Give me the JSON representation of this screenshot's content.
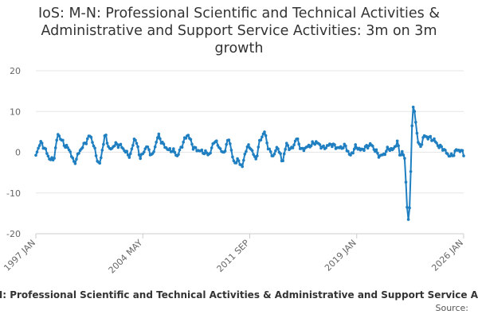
{
  "title_lines": [
    "IoS: M-N: Professional Scientific and Technical Activities &",
    "Administrative and Support Service Activities: 3m on 3m",
    "growth"
  ],
  "legend_label": "IoS: M-N: Professional Scientific and Technical Activities & Administrative and Support Service Activities",
  "source_label": "Source:",
  "colors": {
    "series": "#1f7fc1",
    "grid": "#e6e6e6",
    "axis": "#cccccc"
  },
  "chart_data": {
    "type": "line",
    "title": "IoS: M-N: Professional Scientific and Technical Activities & Administrative and Support Service Activities: 3m on 3m growth",
    "xlabel": "",
    "ylabel": "",
    "ylim": [
      -20,
      20
    ],
    "y_ticks": [
      20,
      10,
      0,
      -10,
      -20
    ],
    "x_tick_labels": [
      "1997 JAN",
      "2004 MAY",
      "2011 SEP",
      "2019 JAN",
      "2026 JAN"
    ],
    "x_range": [
      "1997 JAN",
      "2026 JAN"
    ],
    "x_keyframes": [
      {
        "year": 1997.0,
        "value": -0.8
      },
      {
        "year": 1997.3,
        "value": 2.5
      },
      {
        "year": 1997.6,
        "value": 1.0
      },
      {
        "year": 1997.9,
        "value": -1.5
      },
      {
        "year": 1998.2,
        "value": -2.0
      },
      {
        "year": 1998.5,
        "value": 4.5
      },
      {
        "year": 1998.9,
        "value": 2.0
      },
      {
        "year": 1999.3,
        "value": 0.5
      },
      {
        "year": 1999.6,
        "value": -2.8
      },
      {
        "year": 2000.0,
        "value": 0.5
      },
      {
        "year": 2000.3,
        "value": 2.0
      },
      {
        "year": 2000.7,
        "value": 4.3
      },
      {
        "year": 2001.0,
        "value": 0.5
      },
      {
        "year": 2001.3,
        "value": -3.5
      },
      {
        "year": 2001.7,
        "value": 4.5
      },
      {
        "year": 2002.0,
        "value": 0.5
      },
      {
        "year": 2002.4,
        "value": 2.0
      },
      {
        "year": 2002.8,
        "value": 1.5
      },
      {
        "year": 2003.1,
        "value": 0.0
      },
      {
        "year": 2003.4,
        "value": -1.0
      },
      {
        "year": 2003.7,
        "value": 3.8
      },
      {
        "year": 2004.1,
        "value": -1.5
      },
      {
        "year": 2004.5,
        "value": 1.5
      },
      {
        "year": 2004.9,
        "value": -1.0
      },
      {
        "year": 2005.3,
        "value": 4.3
      },
      {
        "year": 2005.6,
        "value": 2.0
      },
      {
        "year": 2006.0,
        "value": 0.5
      },
      {
        "year": 2006.3,
        "value": 0.5
      },
      {
        "year": 2006.6,
        "value": -1.0
      },
      {
        "year": 2007.0,
        "value": 2.5
      },
      {
        "year": 2007.3,
        "value": 4.5
      },
      {
        "year": 2007.7,
        "value": 1.0
      },
      {
        "year": 2008.0,
        "value": 0.5
      },
      {
        "year": 2008.4,
        "value": 0.0
      },
      {
        "year": 2008.8,
        "value": -0.5
      },
      {
        "year": 2009.1,
        "value": 3.0
      },
      {
        "year": 2009.4,
        "value": 1.5
      },
      {
        "year": 2009.7,
        "value": -0.5
      },
      {
        "year": 2010.1,
        "value": 3.5
      },
      {
        "year": 2010.4,
        "value": -2.5
      },
      {
        "year": 2010.7,
        "value": -2.0
      },
      {
        "year": 2011.0,
        "value": -3.5
      },
      {
        "year": 2011.3,
        "value": 1.5
      },
      {
        "year": 2011.6,
        "value": 1.0
      },
      {
        "year": 2011.9,
        "value": -2.0
      },
      {
        "year": 2012.2,
        "value": 3.0
      },
      {
        "year": 2012.5,
        "value": 5.0
      },
      {
        "year": 2012.8,
        "value": 0.5
      },
      {
        "year": 2013.1,
        "value": -1.0
      },
      {
        "year": 2013.4,
        "value": 1.5
      },
      {
        "year": 2013.7,
        "value": -2.5
      },
      {
        "year": 2014.0,
        "value": 2.0
      },
      {
        "year": 2014.3,
        "value": 0.5
      },
      {
        "year": 2014.7,
        "value": 3.5
      },
      {
        "year": 2015.0,
        "value": 0.5
      },
      {
        "year": 2015.5,
        "value": 1.5
      },
      {
        "year": 2016.0,
        "value": 2.5
      },
      {
        "year": 2016.5,
        "value": 1.0
      },
      {
        "year": 2017.0,
        "value": 2.0
      },
      {
        "year": 2017.5,
        "value": 1.0
      },
      {
        "year": 2018.0,
        "value": 1.5
      },
      {
        "year": 2018.3,
        "value": -1.0
      },
      {
        "year": 2018.7,
        "value": 1.5
      },
      {
        "year": 2019.0,
        "value": 0.5
      },
      {
        "year": 2019.3,
        "value": 1.0
      },
      {
        "year": 2019.7,
        "value": 2.0
      },
      {
        "year": 2020.0,
        "value": 0.5
      },
      {
        "year": 2020.3,
        "value": -1.0
      },
      {
        "year": 2020.6,
        "value": -0.5
      },
      {
        "year": 2020.9,
        "value": 1.0
      },
      {
        "year": 2021.2,
        "value": 0.5
      },
      {
        "year": 2021.5,
        "value": 2.5
      },
      {
        "year": 2021.7,
        "value": -0.8
      },
      {
        "year": 2021.85,
        "value": 0.0
      },
      {
        "year": 2022.0,
        "value": -1.5
      },
      {
        "year": 2022.1,
        "value": -8.5
      },
      {
        "year": 2022.2,
        "value": -16.0
      },
      {
        "year": 2022.3,
        "value": -17.0
      },
      {
        "year": 2022.4,
        "value": -7.0
      },
      {
        "year": 2022.5,
        "value": 6.5
      },
      {
        "year": 2022.6,
        "value": 12.0
      },
      {
        "year": 2022.7,
        "value": 9.0
      },
      {
        "year": 2022.9,
        "value": 2.5
      },
      {
        "year": 2023.1,
        "value": 1.5
      },
      {
        "year": 2023.3,
        "value": 4.0
      },
      {
        "year": 2023.7,
        "value": 3.5
      },
      {
        "year": 2024.0,
        "value": 3.0
      },
      {
        "year": 2024.3,
        "value": 1.5
      },
      {
        "year": 2024.6,
        "value": 1.0
      },
      {
        "year": 2024.9,
        "value": -0.5
      },
      {
        "year": 2025.2,
        "value": -1.0
      },
      {
        "year": 2025.5,
        "value": 0.5
      },
      {
        "year": 2025.8,
        "value": 0.5
      },
      {
        "year": 2026.0,
        "value": -0.5
      }
    ]
  }
}
